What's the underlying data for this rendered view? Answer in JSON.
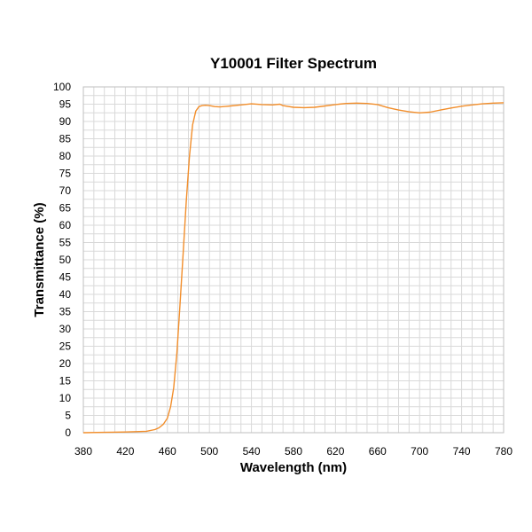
{
  "chart_data": {
    "type": "line",
    "title": "Y10001 Filter Spectrum",
    "xlabel": "Wavelength (nm)",
    "ylabel": "Transmittance (%)",
    "xlim": [
      380,
      780
    ],
    "ylim": [
      0,
      100
    ],
    "xticks": [
      380,
      420,
      460,
      500,
      540,
      580,
      620,
      660,
      700,
      740,
      780
    ],
    "yticks": [
      0,
      5,
      10,
      15,
      20,
      25,
      30,
      35,
      40,
      45,
      50,
      55,
      60,
      65,
      70,
      75,
      80,
      85,
      90,
      95,
      100
    ],
    "grid": true,
    "legend": "none",
    "series": [
      {
        "color": "#f28e2b",
        "x": [
          380,
          400,
          420,
          440,
          448,
          452,
          456,
          460,
          463,
          466,
          469,
          472,
          475,
          478,
          481,
          484,
          487,
          490,
          493,
          496,
          500,
          505,
          510,
          520,
          530,
          540,
          550,
          560,
          567,
          570,
          580,
          590,
          600,
          610,
          620,
          630,
          640,
          650,
          660,
          670,
          680,
          690,
          700,
          710,
          720,
          730,
          740,
          750,
          760,
          770,
          780
        ],
        "y": [
          0,
          0.1,
          0.2,
          0.4,
          0.9,
          1.4,
          2.4,
          4.2,
          7.5,
          13,
          23,
          37,
          52,
          67,
          80,
          89,
          93,
          94.3,
          94.6,
          94.7,
          94.6,
          94.3,
          94.2,
          94.5,
          94.8,
          95.1,
          94.9,
          94.8,
          95.0,
          94.6,
          94.1,
          94.0,
          94.1,
          94.5,
          94.9,
          95.2,
          95.3,
          95.2,
          94.9,
          94.0,
          93.3,
          92.8,
          92.5,
          92.7,
          93.3,
          93.9,
          94.4,
          94.8,
          95.1,
          95.3,
          95.4
        ]
      }
    ]
  }
}
